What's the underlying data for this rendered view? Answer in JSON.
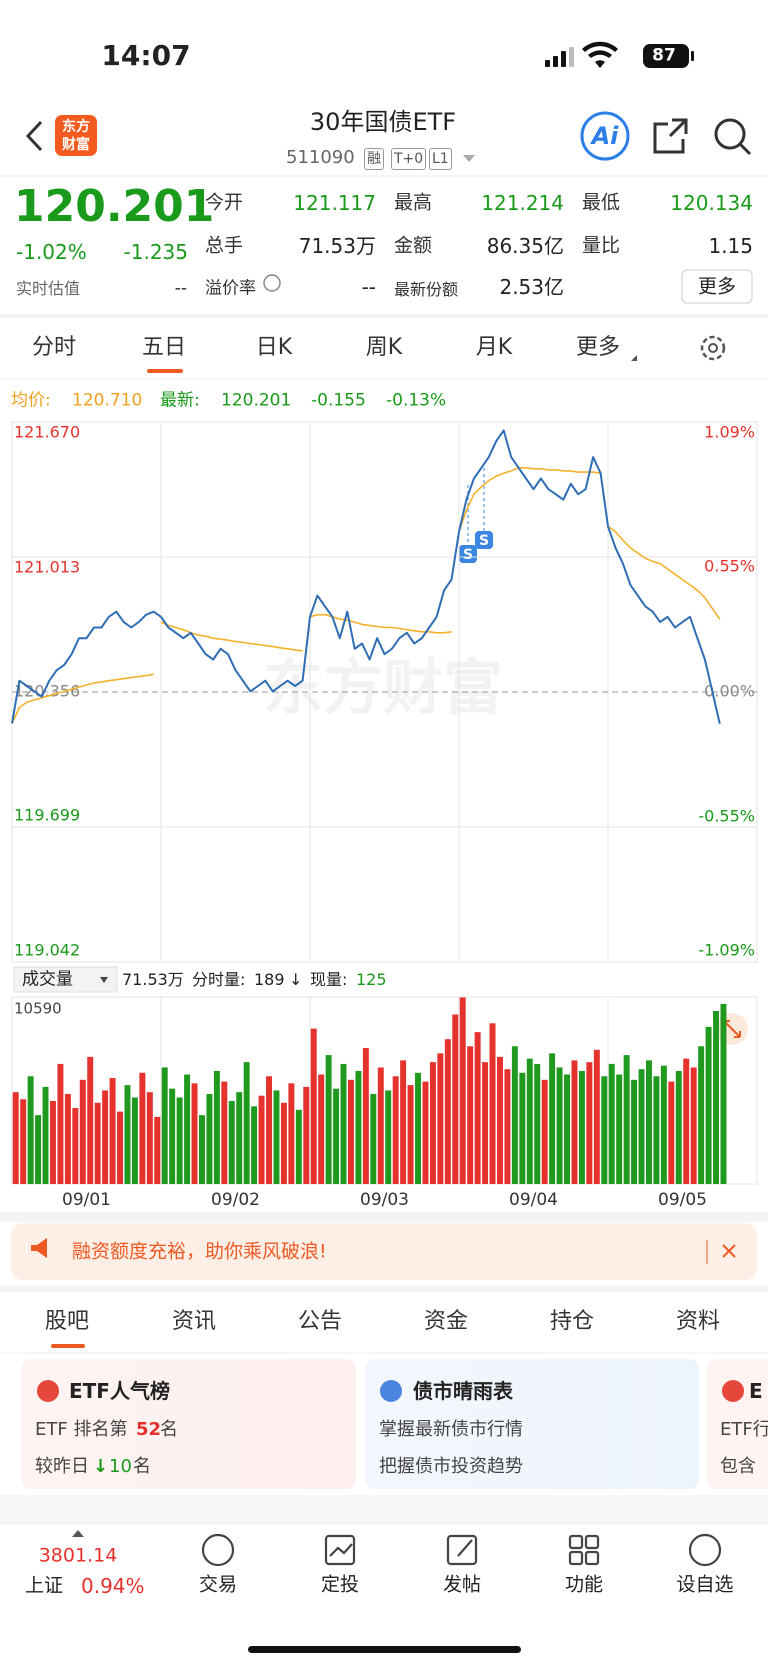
{
  "status_bar": {
    "time": "14:07",
    "battery": "87"
  },
  "header": {
    "logo": [
      "东方",
      "财富"
    ],
    "title": "30年国债ETF",
    "code": "511090",
    "tags": [
      "融",
      "T+0",
      "L1"
    ],
    "ai": "Ai"
  },
  "quote": {
    "price": "120.201",
    "change_pct": "-1.02%",
    "change": "-1.235",
    "estimate_label": "实时估值",
    "estimate_value": "--",
    "fields": [
      {
        "label": "今开",
        "value": "121.117"
      },
      {
        "label": "最高",
        "value": "121.214"
      },
      {
        "label": "最低",
        "value": "120.134"
      },
      {
        "label": "总手",
        "value": "71.53万"
      },
      {
        "label": "金额",
        "value": "86.35亿"
      },
      {
        "label": "量比",
        "value": "1.15"
      },
      {
        "label": "溢价率",
        "value": "--"
      },
      {
        "label": "最新份额",
        "value": "2.53亿"
      }
    ],
    "more": "更多"
  },
  "chart_tabs": [
    "分时",
    "五日",
    "日K",
    "周K",
    "月K",
    "更多"
  ],
  "legend_line": {
    "avg_label": "均价:",
    "avg": "120.710",
    "latest_label": "最新:",
    "latest": "120.201",
    "change": "-0.155",
    "change_pct": "-0.13%"
  },
  "watermark": "东方财富",
  "trade_markers": [
    "S",
    "S"
  ],
  "chart_data": [
    {
      "type": "line",
      "xlim": [
        0,
        100
      ],
      "ylim": [
        119.042,
        121.67
      ],
      "yticks": [
        119.042,
        119.699,
        120.356,
        121.013,
        {
          "value": 121.67,
          "label": "121.670"
        }
      ],
      "y2lim": [
        -1.09,
        1.09
      ],
      "y2ticks": [
        {
          "value": -1.09,
          "label": "-1.09%"
        },
        {
          "value": -0.55,
          "label": "-0.55%"
        },
        {
          "value": 0,
          "label": "0.00%"
        },
        {
          "value": 0.55,
          "label": "0.55%"
        },
        {
          "value": 1.09,
          "label": "1.09%"
        }
      ],
      "grid": true,
      "series": [
        {
          "color": "#2f6db5",
          "values": [
            120.203,
            120.411,
            120.385,
            120.359,
            120.333,
            120.411,
            120.462,
            120.488,
            120.54,
            120.618,
            120.618,
            120.67,
            120.67,
            120.722,
            120.747,
            120.696,
            120.67,
            120.696,
            120.732,
            120.747,
            120.722,
            120.67,
            120.644,
            120.618,
            120.644,
            120.592,
            120.54,
            120.514,
            120.566,
            120.54,
            120.462,
            120.411,
            120.359,
            120.385,
            120.411,
            120.359,
            120.385,
            120.411,
            120.385,
            120.411,
            120.722,
            120.825,
            120.773,
            120.722,
            120.618,
            120.747,
            120.566,
            120.592,
            120.514,
            120.618,
            120.54,
            120.566,
            120.618,
            120.644,
            120.592,
            120.618,
            120.67,
            120.722,
            120.851,
            120.903,
            121.136,
            121.292,
            121.395,
            121.447,
            121.499,
            121.577,
            121.629,
            121.499,
            121.447,
            121.395,
            121.343,
            121.395,
            121.343,
            121.318,
            121.292,
            121.369,
            121.318,
            121.343,
            121.499,
            121.421,
            121.162,
            121.058,
            120.981,
            120.877,
            120.825,
            120.773,
            120.747,
            120.696,
            120.722,
            120.67,
            120.696,
            120.722,
            120.618,
            120.514,
            120.359,
            120.201
          ]
        },
        {
          "color": "#f5b22a",
          "values": [
            120.203,
            120.281,
            120.307,
            120.317,
            120.328,
            120.338,
            120.349,
            120.359,
            120.369,
            120.38,
            120.39,
            120.4,
            120.405,
            120.411,
            120.416,
            120.421,
            120.426,
            120.431,
            120.436,
            120.442,
            120.696,
            120.68,
            120.67,
            120.659,
            120.644,
            120.633,
            120.628,
            120.618,
            120.613,
            120.608,
            120.602,
            120.597,
            120.592,
            120.587,
            120.582,
            120.577,
            120.571,
            120.566,
            120.561,
            120.556,
            120.722,
            120.732,
            120.732,
            120.722,
            120.711,
            120.706,
            120.696,
            120.685,
            120.68,
            120.675,
            120.67,
            120.67,
            120.665,
            120.659,
            120.654,
            120.649,
            120.649,
            120.644,
            120.644,
            120.649,
            121.136,
            121.24,
            121.318,
            121.354,
            121.385,
            121.406,
            121.421,
            121.432,
            121.447,
            121.447,
            121.442,
            121.442,
            121.437,
            121.437,
            121.432,
            121.432,
            121.426,
            121.426,
            121.426,
            121.421,
            121.162,
            121.136,
            121.095,
            121.058,
            121.032,
            121.007,
            120.991,
            120.981,
            120.955,
            120.929,
            120.903,
            120.877,
            120.851,
            120.815,
            120.763,
            120.71
          ]
        }
      ]
    },
    {
      "type": "bar",
      "xlim": [
        0,
        100
      ],
      "xticks": [
        {
          "value": 10,
          "label": "09/01"
        },
        {
          "value": 30,
          "label": "09/02"
        },
        {
          "value": 50,
          "label": "09/03"
        },
        {
          "value": 70,
          "label": "09/04"
        },
        {
          "value": 90,
          "label": "09/05"
        }
      ],
      "ylim": [
        0,
        10590
      ],
      "yticks": [
        10590
      ],
      "up_color": "#e5322d",
      "down_color": "#1f9a1f",
      "values": [
        5200,
        4800,
        6100,
        3900,
        5500,
        4700,
        6800,
        5100,
        4300,
        5900,
        7200,
        4600,
        5300,
        6000,
        4100,
        5600,
        4900,
        6300,
        5200,
        3800,
        6600,
        5400,
        4900,
        6200,
        5700,
        3900,
        5100,
        6400,
        5800,
        4700,
        5200,
        6900,
        4400,
        5000,
        6100,
        5300,
        4600,
        5700,
        4200,
        5500,
        8800,
        6200,
        7300,
        5400,
        6800,
        5900,
        6400,
        7700,
        5100,
        6600,
        5300,
        6100,
        7000,
        5600,
        6300,
        5800,
        6900,
        7400,
        8200,
        9600,
        10590,
        7800,
        8600,
        6900,
        9100,
        7200,
        6500,
        7800,
        6300,
        7100,
        6800,
        5900,
        7400,
        6600,
        6200,
        7000,
        6400,
        6900,
        7600,
        6100,
        6800,
        6200,
        7300,
        5900,
        6500,
        7000,
        6100,
        6700,
        5800,
        6400,
        7100,
        6600,
        7800,
        8900,
        9800,
        10200
      ]
    }
  ],
  "volume_info": {
    "selector": "成交量",
    "total": "71.53万",
    "tick_label": "分时量:",
    "tick": "189",
    "arrow": "↓",
    "current_label": "现量:",
    "current": "125"
  },
  "banner": "融资额度充裕，助你乘风破浪!",
  "tabs": [
    "股吧",
    "资讯",
    "公告",
    "资金",
    "持仓",
    "资料"
  ],
  "cards": [
    {
      "title": "ETF人气榜",
      "line1": [
        "ETF 排名第",
        "52",
        "名"
      ],
      "line2": [
        "较昨日",
        "↓",
        "10",
        "名"
      ]
    },
    {
      "title": "债市晴雨表",
      "line1": "掌握最新债市行情",
      "line2": "把握债市投资趋势"
    },
    {
      "title": "E",
      "line1": "ETF行",
      "line2": "包含"
    }
  ],
  "bottom_nav": {
    "index_value": "3801.14",
    "index_name": "上证",
    "index_change": "0.94%",
    "items": [
      "交易",
      "定投",
      "发帖",
      "功能",
      "设自选"
    ]
  }
}
